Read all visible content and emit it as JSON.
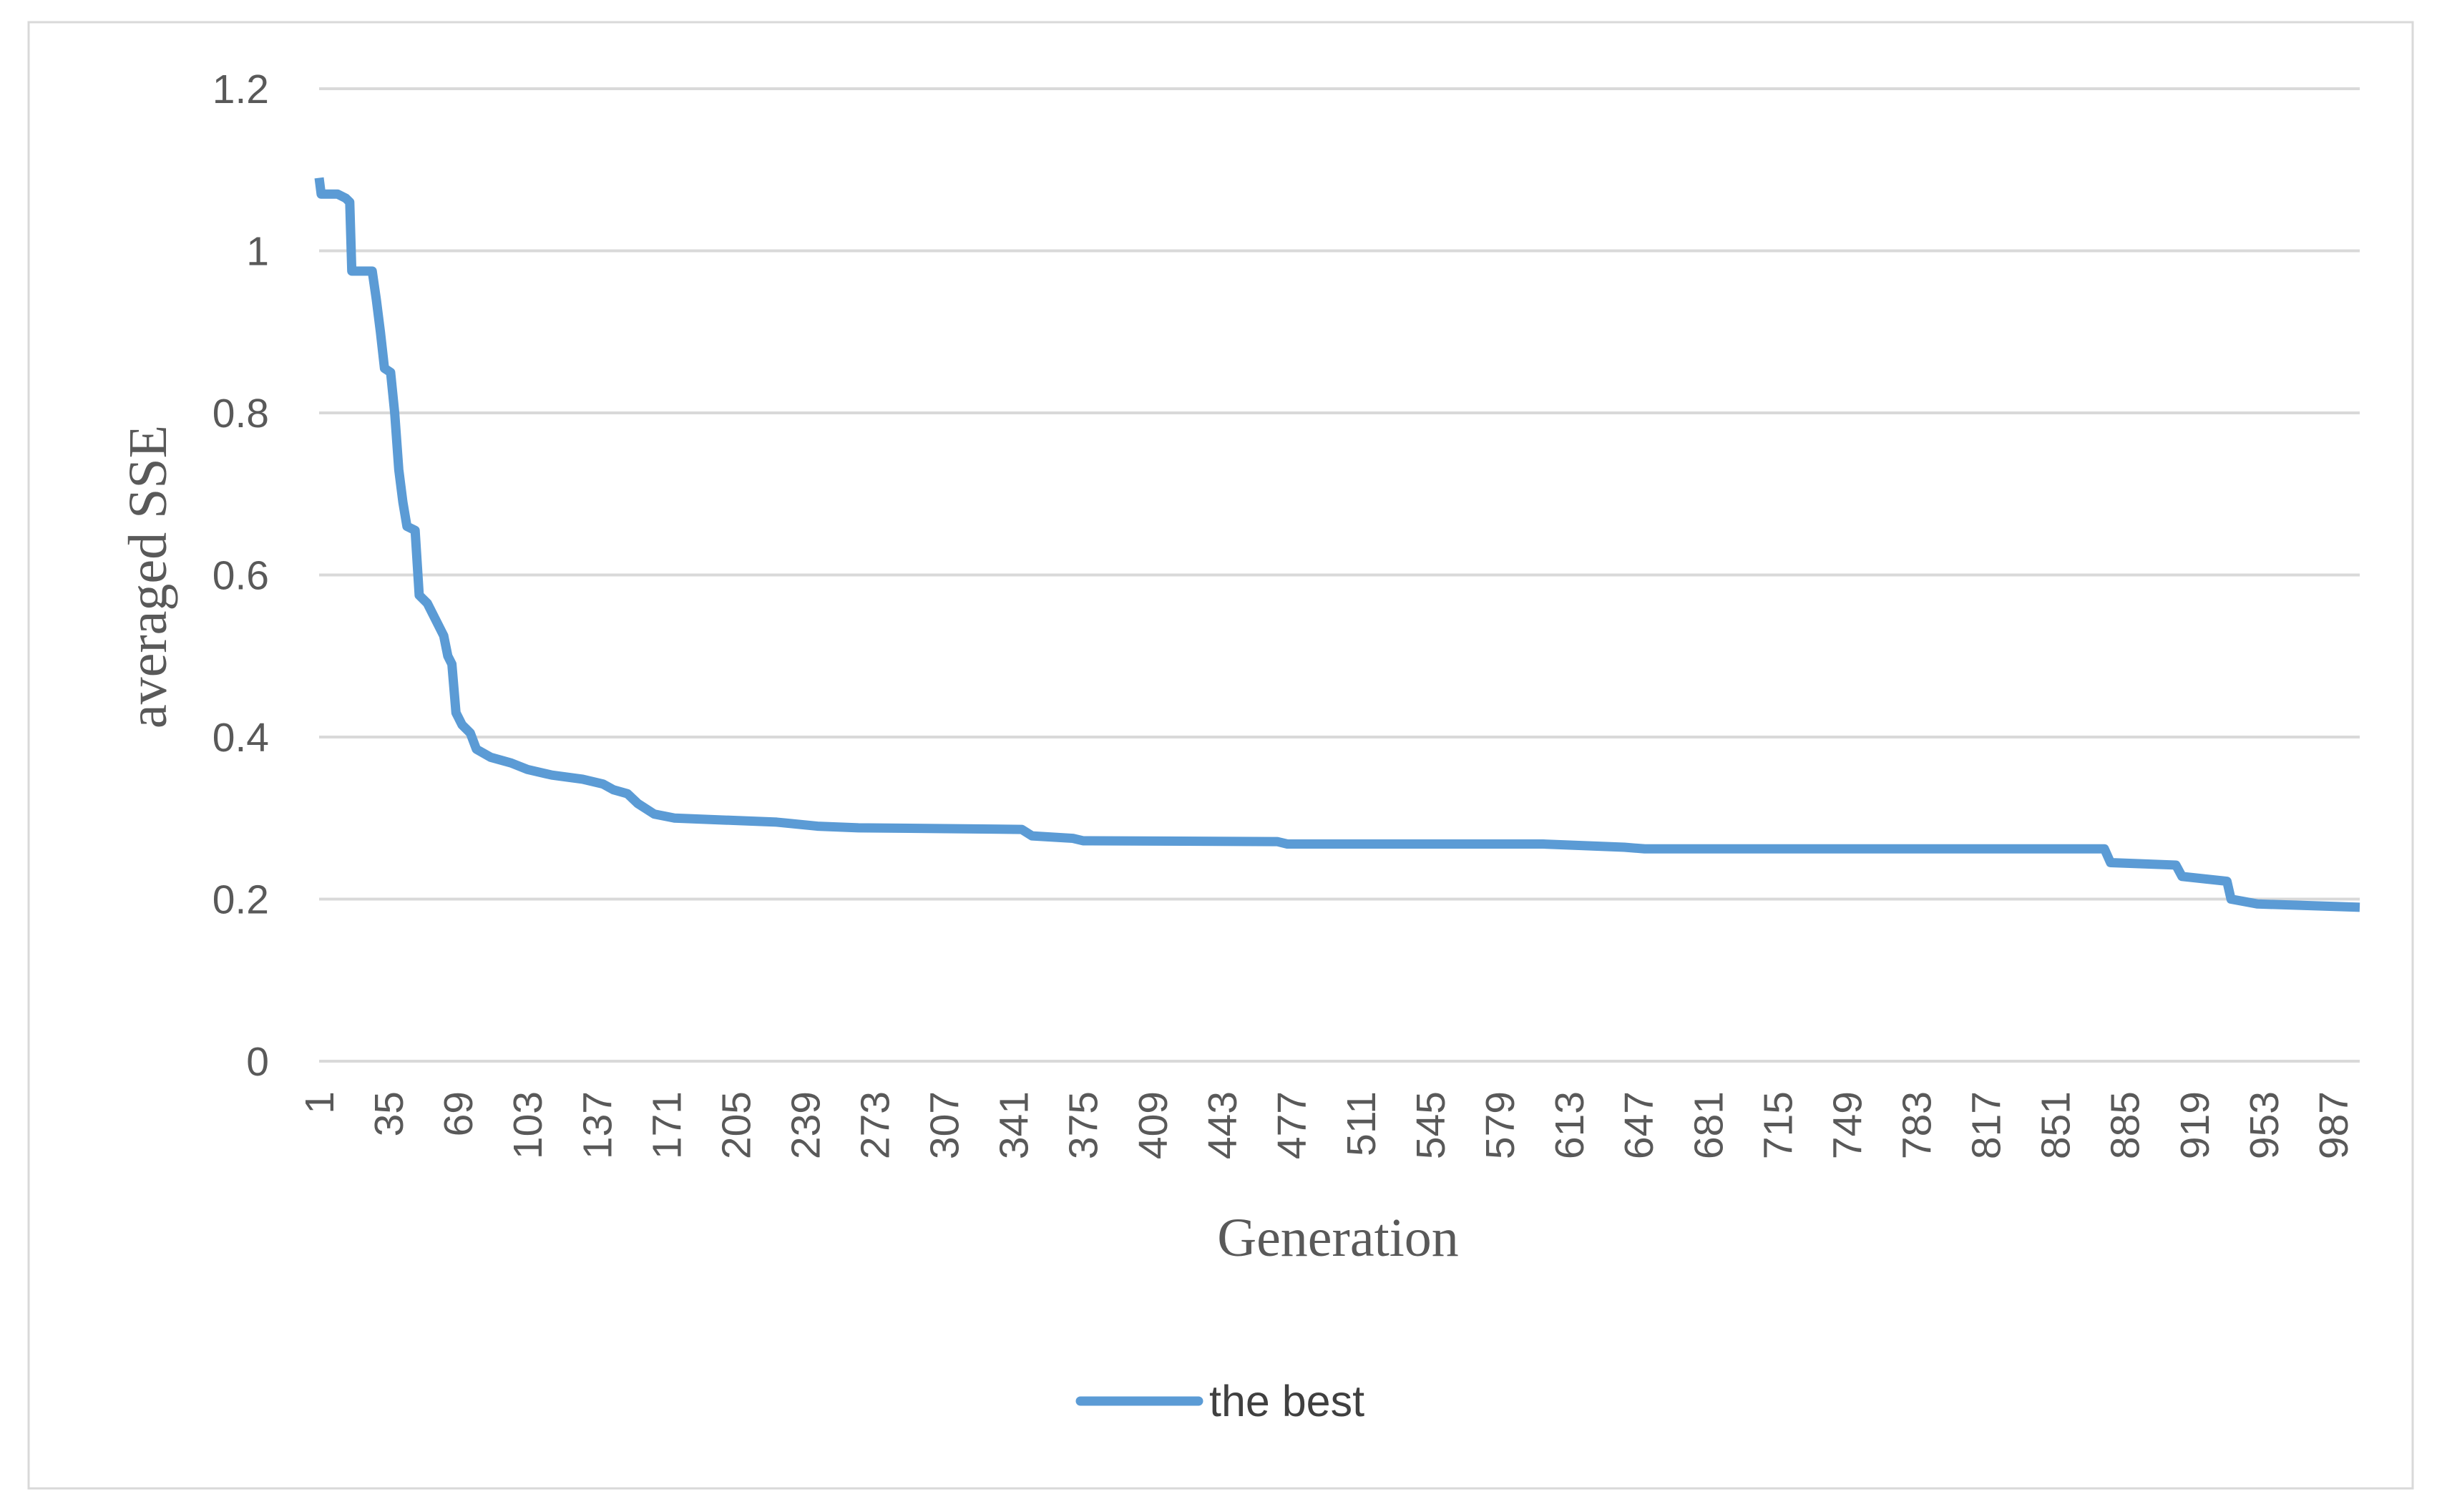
{
  "chart_data": {
    "type": "line",
    "xlabel": "Generation",
    "ylabel": "averaged SSE",
    "x": [
      1,
      2,
      10,
      14,
      16,
      17,
      27,
      29,
      31,
      33,
      36,
      38,
      40,
      42,
      44,
      48,
      50,
      54,
      58,
      62,
      64,
      66,
      68,
      71,
      75,
      78,
      85,
      95,
      103,
      115,
      130,
      140,
      145,
      152,
      157,
      165,
      175,
      205,
      225,
      245,
      265,
      345,
      350,
      370,
      375,
      470,
      475,
      600,
      640,
      650,
      875,
      878,
      910,
      913,
      935,
      937,
      950,
      1000
    ],
    "series": [
      {
        "name": "the best",
        "color": "#5b9bd5",
        "values": [
          1.09,
          1.07,
          1.07,
          1.065,
          1.06,
          0.975,
          0.975,
          0.94,
          0.9,
          0.855,
          0.85,
          0.8,
          0.73,
          0.69,
          0.66,
          0.655,
          0.575,
          0.565,
          0.545,
          0.525,
          0.5,
          0.49,
          0.43,
          0.415,
          0.405,
          0.385,
          0.375,
          0.368,
          0.36,
          0.353,
          0.348,
          0.342,
          0.335,
          0.33,
          0.318,
          0.305,
          0.3,
          0.297,
          0.295,
          0.29,
          0.288,
          0.286,
          0.278,
          0.275,
          0.272,
          0.271,
          0.268,
          0.268,
          0.264,
          0.262,
          0.262,
          0.245,
          0.242,
          0.228,
          0.222,
          0.2,
          0.194,
          0.19
        ]
      }
    ],
    "xlim": [
      1,
      1000
    ],
    "xticks": [
      1,
      35,
      69,
      103,
      137,
      171,
      205,
      239,
      273,
      307,
      341,
      375,
      409,
      443,
      477,
      511,
      545,
      579,
      613,
      647,
      681,
      715,
      749,
      783,
      817,
      851,
      885,
      919,
      953,
      987
    ],
    "ylim": [
      0,
      1.2
    ],
    "yticks": [
      0,
      0.2,
      0.4,
      0.6,
      0.8,
      1,
      1.2
    ],
    "grid": true,
    "legend": "bottom"
  }
}
